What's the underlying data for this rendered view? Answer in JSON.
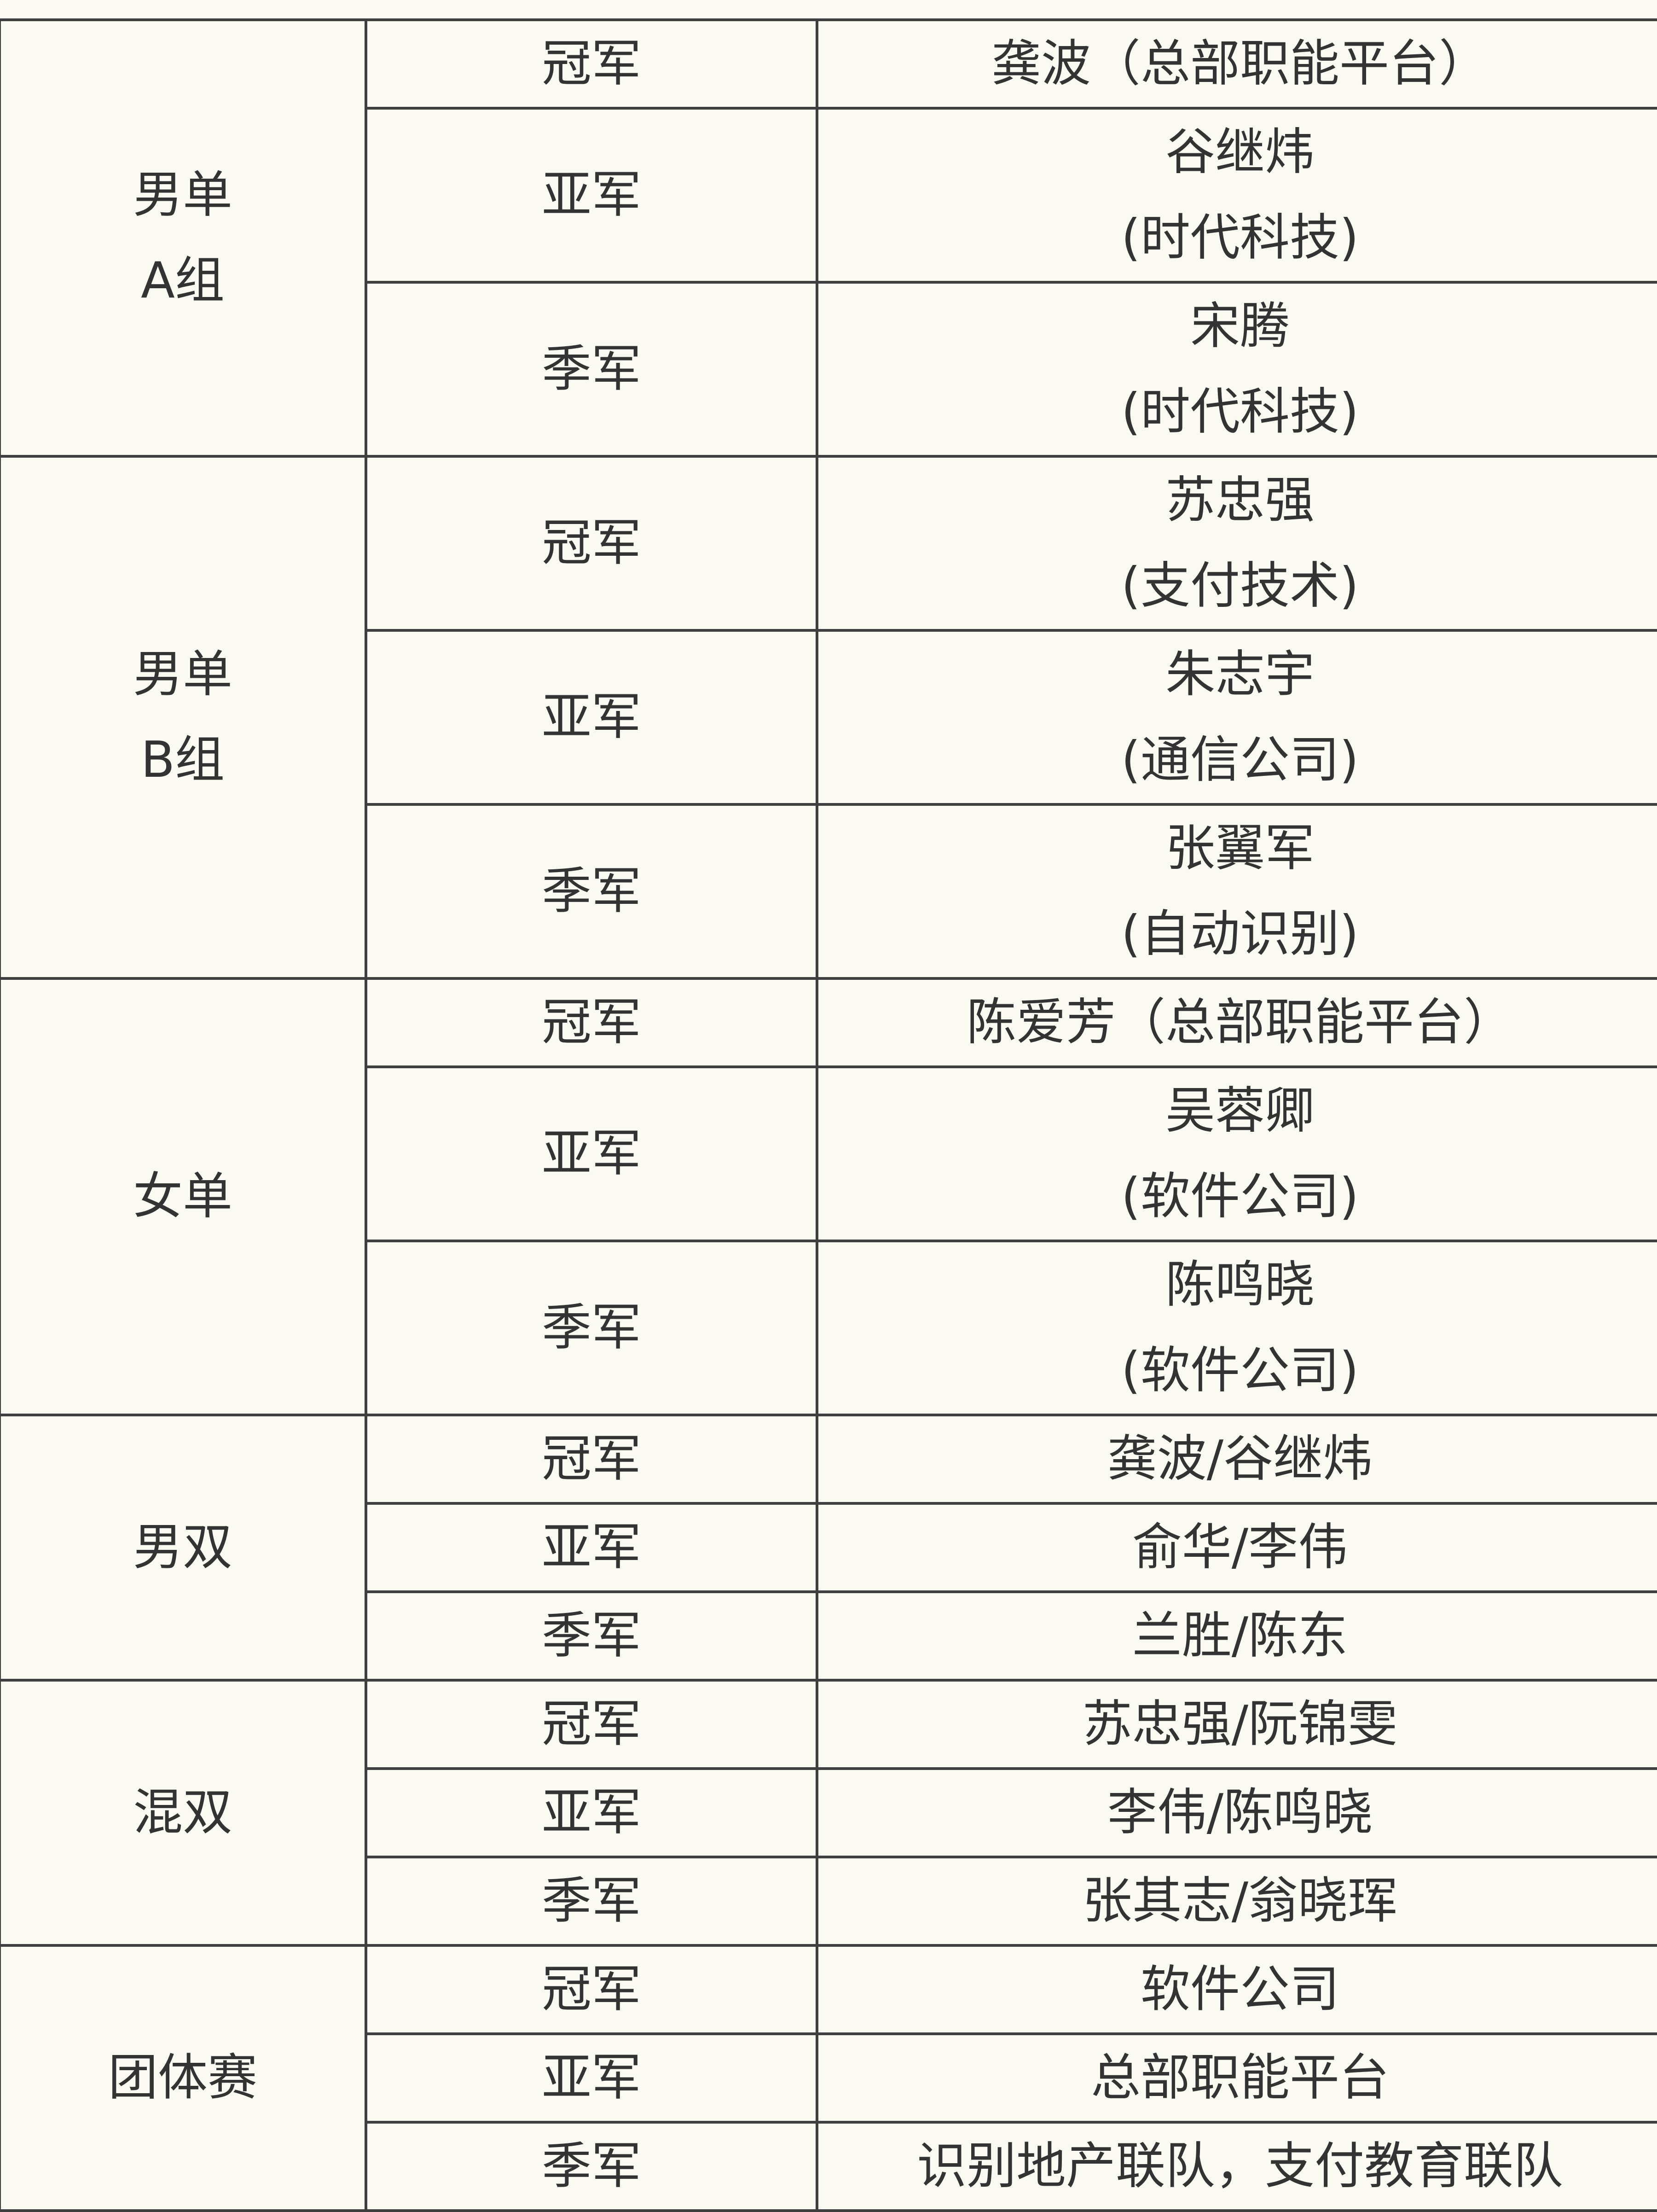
{
  "results": [
    {
      "category": [
        "男单",
        "A组"
      ],
      "rows": [
        {
          "place": "冠军",
          "winner": [
            "龚波（总部职能平台）"
          ]
        },
        {
          "place": "亚军",
          "winner": [
            "谷继炜",
            "(时代科技)"
          ]
        },
        {
          "place": "季军",
          "winner": [
            "宋腾",
            "(时代科技)"
          ]
        }
      ]
    },
    {
      "category": [
        "男单",
        "B组"
      ],
      "rows": [
        {
          "place": "冠军",
          "winner": [
            "苏忠强",
            "(支付技术)"
          ]
        },
        {
          "place": "亚军",
          "winner": [
            "朱志宇",
            "(通信公司)"
          ]
        },
        {
          "place": "季军",
          "winner": [
            "张翼军",
            "(自动识别)"
          ]
        }
      ]
    },
    {
      "category": [
        "女单"
      ],
      "rows": [
        {
          "place": "冠军",
          "winner": [
            "陈爱芳（总部职能平台）"
          ]
        },
        {
          "place": "亚军",
          "winner": [
            "吴蓉卿",
            "(软件公司)"
          ]
        },
        {
          "place": "季军",
          "winner": [
            "陈鸣晓",
            "(软件公司)"
          ]
        }
      ]
    },
    {
      "category": [
        "男双"
      ],
      "rows": [
        {
          "place": "冠军",
          "winner": [
            "龚波/谷继炜"
          ]
        },
        {
          "place": "亚军",
          "winner": [
            "俞华/李伟"
          ]
        },
        {
          "place": "季军",
          "winner": [
            "兰胜/陈东"
          ]
        }
      ]
    },
    {
      "category": [
        "混双"
      ],
      "rows": [
        {
          "place": "冠军",
          "winner": [
            "苏忠强/阮锦雯"
          ]
        },
        {
          "place": "亚军",
          "winner": [
            "李伟/陈鸣晓"
          ]
        },
        {
          "place": "季军",
          "winner": [
            "张其志/翁晓珲"
          ]
        }
      ]
    },
    {
      "category": [
        "团体赛"
      ],
      "rows": [
        {
          "place": "冠军",
          "winner": [
            "软件公司"
          ]
        },
        {
          "place": "亚军",
          "winner": [
            "总部职能平台"
          ]
        },
        {
          "place": "季军",
          "winner": [
            "识别地产联队，支付教育联队"
          ]
        }
      ]
    }
  ]
}
